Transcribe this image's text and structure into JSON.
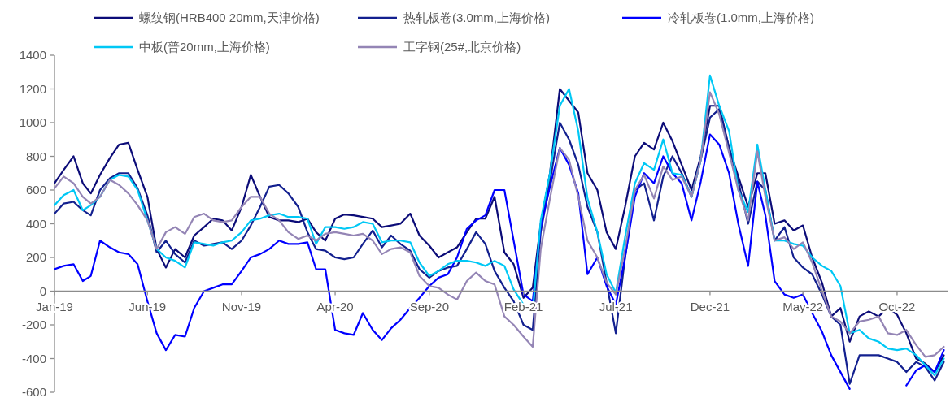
{
  "chart_data": {
    "type": "line",
    "legend": "top",
    "grid": false,
    "marker": "none",
    "line_style": "solid",
    "x": [
      "2019-01-01",
      "2019-01-16",
      "2019-02-01",
      "2019-02-16",
      "2019-03-01",
      "2019-03-16",
      "2019-04-01",
      "2019-04-16",
      "2019-05-01",
      "2019-05-16",
      "2019-06-01",
      "2019-06-16",
      "2019-07-01",
      "2019-07-16",
      "2019-08-01",
      "2019-08-16",
      "2019-09-01",
      "2019-09-16",
      "2019-10-01",
      "2019-10-16",
      "2019-11-01",
      "2019-11-16",
      "2019-12-01",
      "2019-12-16",
      "2020-01-01",
      "2020-01-16",
      "2020-02-01",
      "2020-02-16",
      "2020-03-01",
      "2020-03-16",
      "2020-04-01",
      "2020-04-16",
      "2020-05-01",
      "2020-05-16",
      "2020-06-01",
      "2020-06-16",
      "2020-07-01",
      "2020-07-16",
      "2020-08-01",
      "2020-08-16",
      "2020-09-01",
      "2020-09-16",
      "2020-10-01",
      "2020-10-16",
      "2020-11-01",
      "2020-11-16",
      "2020-12-01",
      "2020-12-16",
      "2021-01-01",
      "2021-01-16",
      "2021-02-01",
      "2021-02-16",
      "2021-03-01",
      "2021-03-16",
      "2021-04-01",
      "2021-04-16",
      "2021-05-01",
      "2021-05-16",
      "2021-06-01",
      "2021-06-16",
      "2021-07-01",
      "2021-07-16",
      "2021-08-01",
      "2021-08-16",
      "2021-09-01",
      "2021-09-16",
      "2021-10-01",
      "2021-10-16",
      "2021-11-01",
      "2021-11-16",
      "2021-12-01",
      "2021-12-16",
      "2022-01-01",
      "2022-01-16",
      "2022-02-01",
      "2022-02-16",
      "2022-03-01",
      "2022-03-16",
      "2022-04-01",
      "2022-04-16",
      "2022-05-01",
      "2022-05-16",
      "2022-06-01",
      "2022-06-16",
      "2022-07-01",
      "2022-07-16",
      "2022-08-01",
      "2022-08-16",
      "2022-09-01",
      "2022-09-16",
      "2022-10-01",
      "2022-10-16",
      "2022-11-01",
      "2022-11-16",
      "2022-12-01",
      "2022-12-16"
    ],
    "xlim": [
      "2019-01-01",
      "2022-12-22"
    ],
    "xticks": [
      {
        "value": "2019-01-01",
        "label": "Jan-19"
      },
      {
        "value": "2019-06-01",
        "label": "Jun-19"
      },
      {
        "value": "2019-11-01",
        "label": "Nov-19"
      },
      {
        "value": "2020-04-01",
        "label": "Apr-20"
      },
      {
        "value": "2020-09-01",
        "label": "Sep-20"
      },
      {
        "value": "2021-02-01",
        "label": "Feb-21"
      },
      {
        "value": "2021-07-01",
        "label": "Jul-21"
      },
      {
        "value": "2021-12-01",
        "label": "Dec-21"
      },
      {
        "value": "2022-05-01",
        "label": "May-22"
      },
      {
        "value": "2022-10-01",
        "label": "Oct-22"
      }
    ],
    "ylim": [
      -600,
      1400
    ],
    "yticks": [
      -600,
      -400,
      -200,
      0,
      200,
      400,
      600,
      800,
      1000,
      1200,
      1400
    ],
    "series": [
      {
        "name": "螺纹钢(HRB400 20mm,天津价格)",
        "color": "#0c0c78",
        "values": [
          640,
          720,
          800,
          640,
          580,
          690,
          790,
          870,
          880,
          720,
          560,
          250,
          140,
          250,
          200,
          330,
          380,
          430,
          420,
          360,
          500,
          690,
          560,
          440,
          420,
          420,
          410,
          430,
          350,
          300,
          430,
          455,
          450,
          440,
          430,
          380,
          390,
          400,
          460,
          330,
          270,
          200,
          230,
          260,
          350,
          430,
          430,
          560,
          230,
          160,
          -40,
          20,
          400,
          700,
          1200,
          1130,
          1060,
          700,
          600,
          350,
          250,
          500,
          800,
          880,
          840,
          1000,
          890,
          750,
          600,
          800,
          1100,
          1100,
          850,
          680,
          500,
          700,
          700,
          400,
          420,
          360,
          390,
          200,
          50,
          -150,
          -100,
          -300,
          -150,
          -120,
          -150,
          -100,
          -140,
          -250,
          -400,
          -430,
          -480,
          -380
        ]
      },
      {
        "name": "热轧板卷(3.0mm,上海价格)",
        "color": "#13208f",
        "values": [
          460,
          520,
          530,
          480,
          450,
          600,
          670,
          700,
          700,
          610,
          450,
          230,
          300,
          220,
          170,
          300,
          270,
          280,
          290,
          250,
          300,
          390,
          500,
          620,
          630,
          580,
          500,
          350,
          250,
          240,
          200,
          190,
          200,
          280,
          360,
          260,
          330,
          280,
          240,
          130,
          80,
          120,
          140,
          150,
          250,
          350,
          280,
          120,
          20,
          -60,
          -200,
          -230,
          350,
          650,
          1000,
          900,
          750,
          500,
          350,
          50,
          -250,
          200,
          600,
          640,
          420,
          680,
          800,
          700,
          560,
          780,
          1030,
          1080,
          850,
          650,
          400,
          650,
          600,
          300,
          380,
          200,
          140,
          100,
          -20,
          -150,
          -200,
          -550,
          -380,
          -380,
          -380,
          -400,
          -420,
          -480,
          -420,
          -450,
          -530,
          -420
        ]
      },
      {
        "name": "冷轧板卷(1.0mm,上海价格)",
        "color": "#0000ff",
        "values": [
          130,
          150,
          160,
          60,
          90,
          300,
          260,
          230,
          220,
          160,
          -60,
          -250,
          -350,
          -260,
          -270,
          -100,
          0,
          20,
          40,
          40,
          120,
          200,
          220,
          250,
          300,
          280,
          280,
          290,
          130,
          130,
          -230,
          -250,
          -260,
          -130,
          -230,
          -290,
          -220,
          -170,
          -100,
          -40,
          30,
          80,
          100,
          200,
          370,
          420,
          450,
          600,
          600,
          300,
          -20,
          -60,
          380,
          620,
          850,
          750,
          580,
          100,
          200,
          30,
          -80,
          200,
          560,
          700,
          640,
          800,
          700,
          640,
          420,
          650,
          930,
          870,
          700,
          400,
          150,
          650,
          450,
          60,
          -20,
          -40,
          -20,
          -130,
          -240,
          -380,
          -480,
          -580,
          null,
          null,
          null,
          null,
          null,
          -560,
          -470,
          -440,
          -480,
          -350
        ]
      },
      {
        "name": "中板(普20mm,上海价格)",
        "color": "#00c8f5",
        "values": [
          510,
          570,
          600,
          480,
          510,
          560,
          660,
          690,
          680,
          600,
          420,
          250,
          200,
          180,
          140,
          290,
          280,
          270,
          290,
          300,
          350,
          420,
          430,
          450,
          460,
          440,
          440,
          430,
          280,
          380,
          380,
          370,
          380,
          410,
          400,
          290,
          300,
          300,
          290,
          170,
          90,
          120,
          160,
          180,
          180,
          170,
          150,
          180,
          150,
          10,
          -80,
          -120,
          420,
          700,
          1100,
          1200,
          950,
          550,
          350,
          100,
          -10,
          320,
          640,
          760,
          720,
          900,
          700,
          690,
          560,
          780,
          1280,
          1100,
          950,
          600,
          470,
          870,
          600,
          300,
          300,
          280,
          270,
          200,
          150,
          120,
          30,
          -250,
          -230,
          -280,
          -300,
          -340,
          -350,
          -340,
          -380,
          -440,
          -500,
          -400
        ]
      },
      {
        "name": "工字钢(25#,北京价格)",
        "color": "#9485b5",
        "values": [
          610,
          680,
          640,
          560,
          520,
          560,
          660,
          630,
          580,
          510,
          420,
          250,
          350,
          380,
          340,
          440,
          460,
          420,
          410,
          420,
          500,
          560,
          560,
          460,
          420,
          350,
          310,
          330,
          300,
          340,
          350,
          340,
          330,
          340,
          300,
          220,
          250,
          260,
          230,
          90,
          30,
          20,
          -20,
          -50,
          60,
          110,
          60,
          40,
          -150,
          -200,
          -270,
          -330,
          250,
          550,
          850,
          780,
          560,
          300,
          200,
          50,
          -20,
          250,
          600,
          690,
          550,
          740,
          660,
          680,
          560,
          780,
          1180,
          1050,
          820,
          600,
          420,
          830,
          560,
          300,
          320,
          250,
          290,
          170,
          0,
          -150,
          -180,
          -250,
          -180,
          -170,
          -150,
          -250,
          -260,
          -230,
          -320,
          -390,
          -380,
          -330
        ]
      }
    ]
  }
}
